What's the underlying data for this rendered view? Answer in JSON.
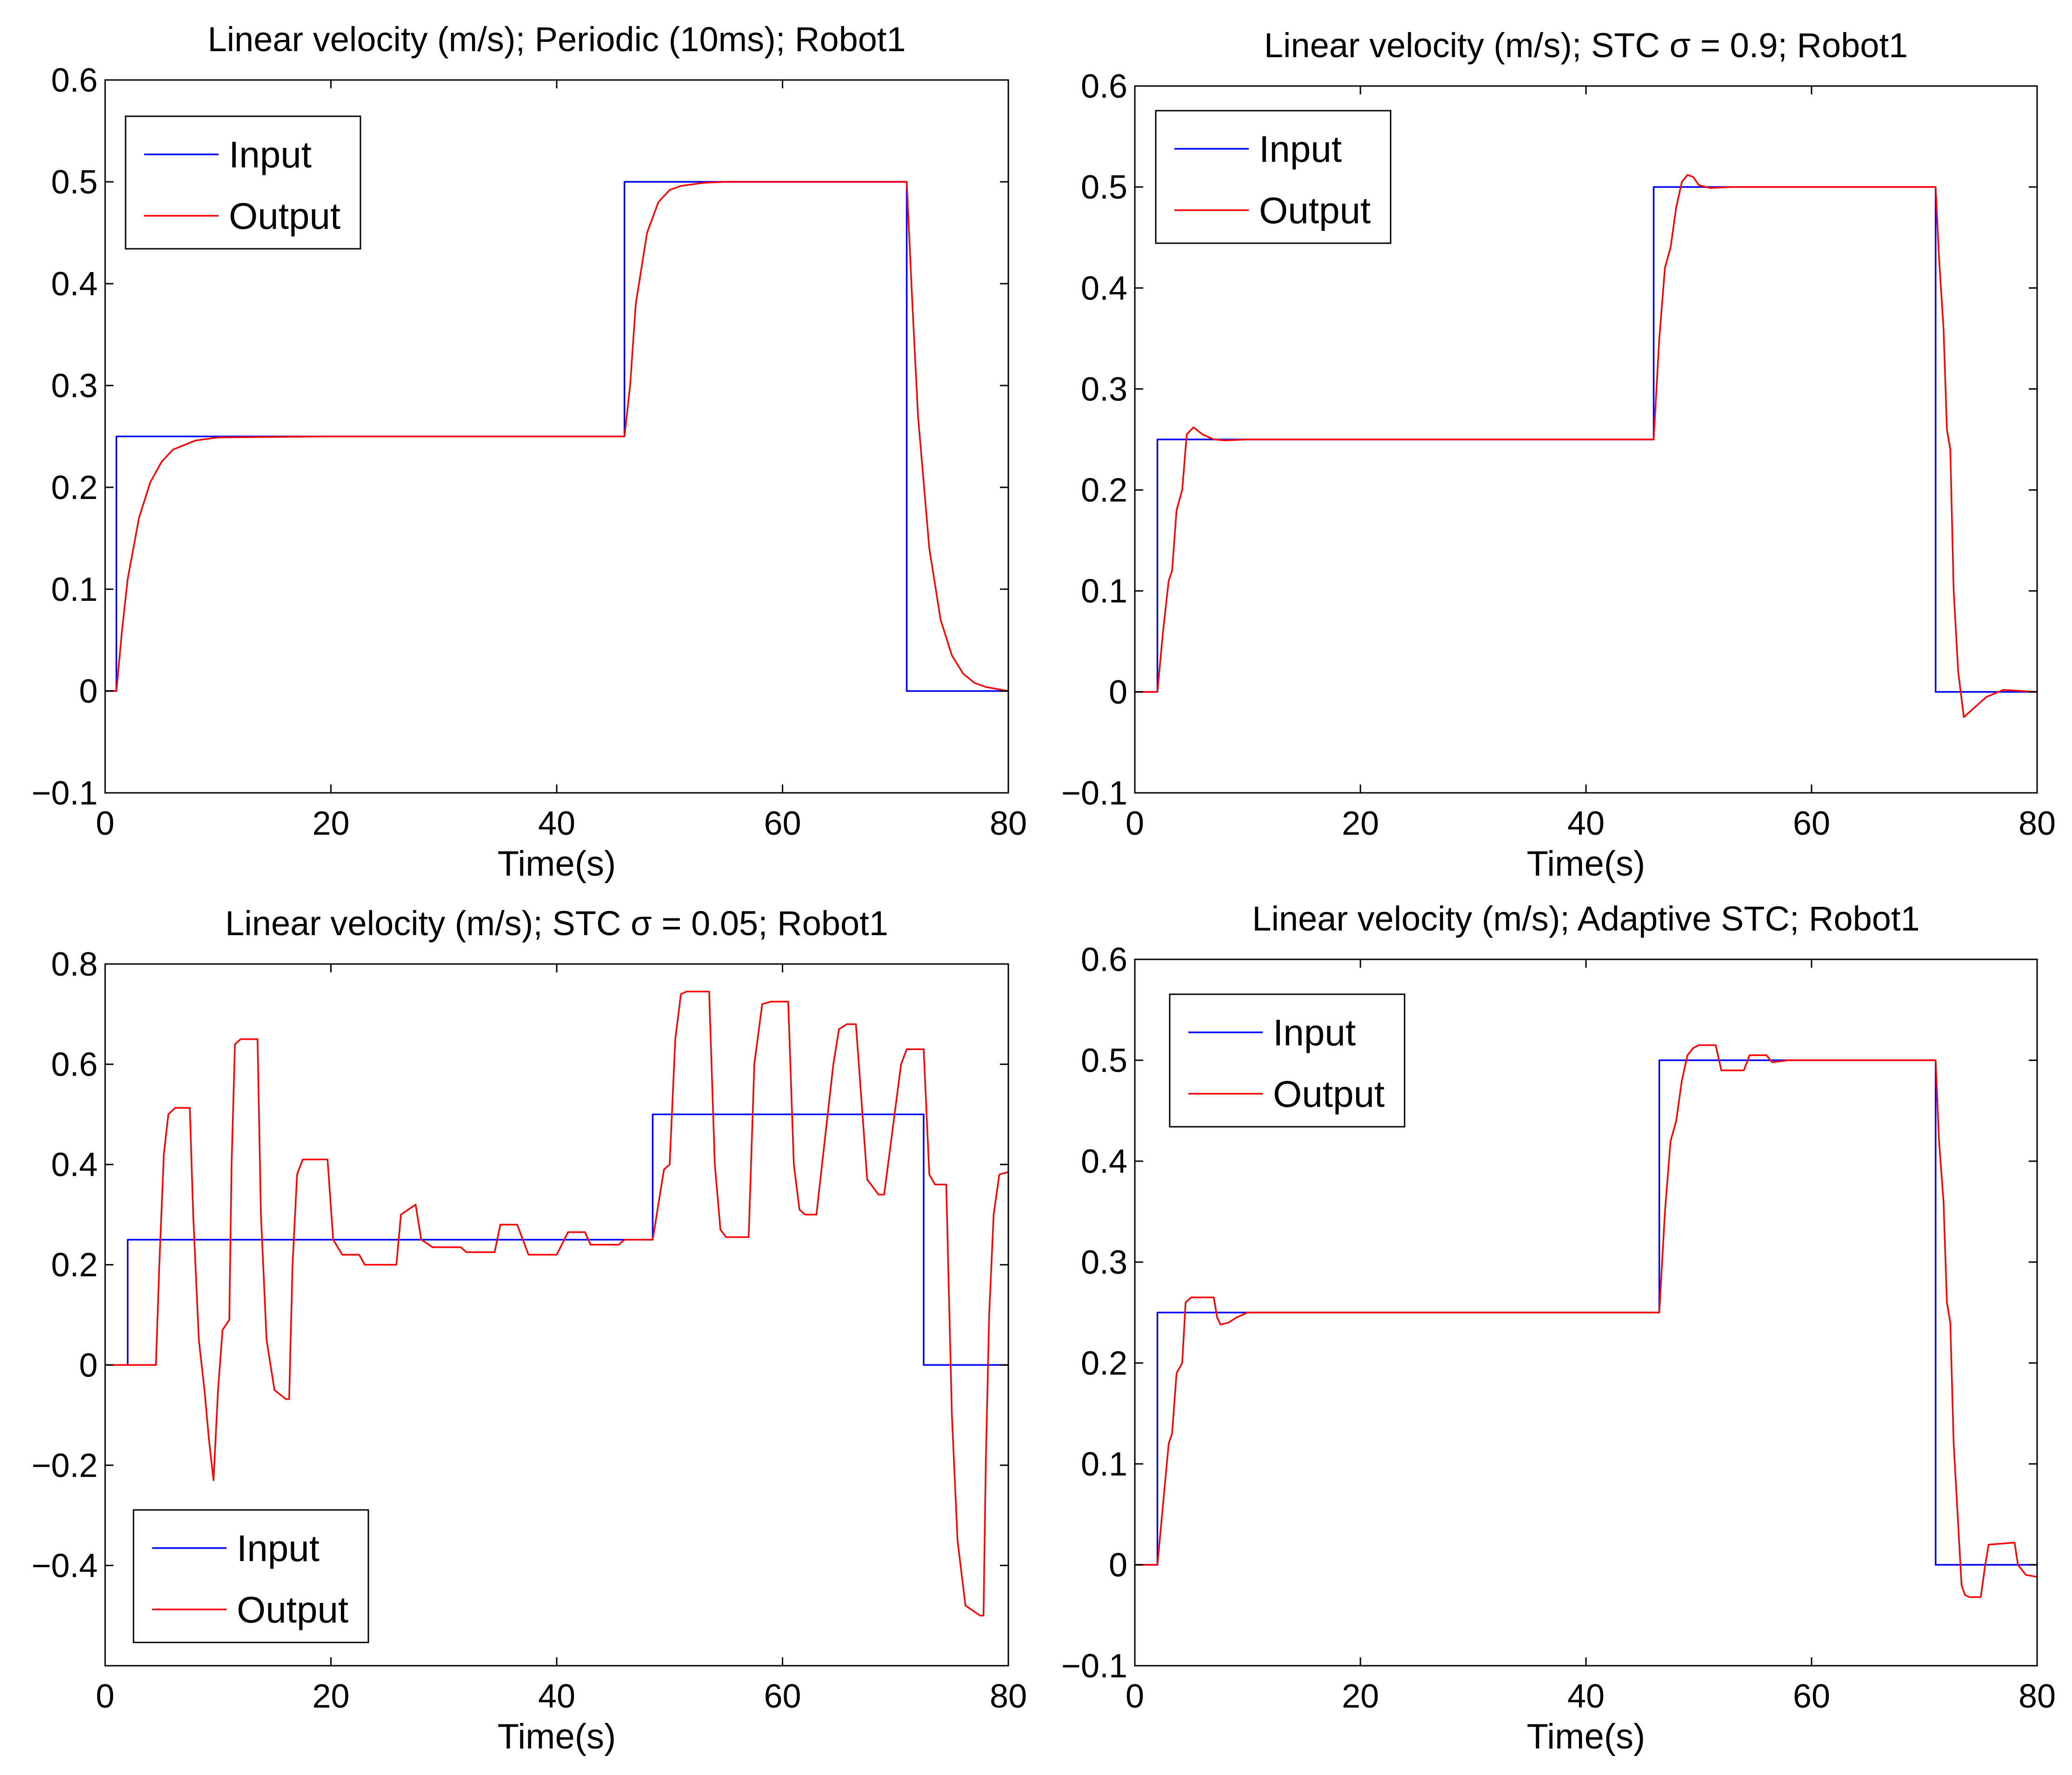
{
  "chart_data": [
    {
      "type": "line",
      "title": "Linear velocity (m/s); Periodic (10ms); Robot1",
      "xlabel": "Time(s)",
      "ylabel": "",
      "xlim": [
        0,
        80
      ],
      "ylim": [
        -0.1,
        0.6
      ],
      "xticks": [
        0,
        20,
        40,
        60,
        80
      ],
      "xtick_labels": [
        "0",
        "20",
        "40",
        "60",
        "80"
      ],
      "yticks": [
        -0.1,
        0,
        0.1,
        0.2,
        0.3,
        0.4,
        0.5,
        0.6
      ],
      "ytick_labels": [
        "−0.1",
        "0",
        "0.1",
        "0.2",
        "0.3",
        "0.4",
        "0.5",
        "0.6"
      ],
      "legend": [
        "Input",
        "Output"
      ],
      "legend_position": "top-left",
      "series": [
        {
          "name": "Input",
          "color": "#0000ff",
          "x": [
            0,
            1,
            1,
            46,
            46,
            71,
            71,
            80
          ],
          "y": [
            0,
            0,
            0.25,
            0.25,
            0.5,
            0.5,
            0,
            0
          ]
        },
        {
          "name": "Output",
          "color": "#ff0000",
          "x": [
            0,
            1,
            1.5,
            2,
            3,
            4,
            5,
            6,
            8,
            10,
            20,
            46,
            46.5,
            47,
            48,
            49,
            50,
            51,
            53,
            55,
            60,
            71,
            71.5,
            72,
            73,
            74,
            75,
            76,
            77,
            78,
            80
          ],
          "y": [
            0,
            0,
            0.06,
            0.11,
            0.17,
            0.205,
            0.225,
            0.237,
            0.246,
            0.249,
            0.25,
            0.25,
            0.3,
            0.38,
            0.45,
            0.48,
            0.492,
            0.496,
            0.499,
            0.5,
            0.5,
            0.5,
            0.38,
            0.27,
            0.14,
            0.07,
            0.035,
            0.017,
            0.008,
            0.004,
            0
          ]
        }
      ]
    },
    {
      "type": "line",
      "title": "Linear velocity (m/s); STC σ = 0.9; Robot1",
      "xlabel": "Time(s)",
      "ylabel": "",
      "xlim": [
        0,
        80
      ],
      "ylim": [
        -0.1,
        0.6
      ],
      "xticks": [
        0,
        20,
        40,
        60,
        80
      ],
      "xtick_labels": [
        "0",
        "20",
        "40",
        "60",
        "80"
      ],
      "yticks": [
        -0.1,
        0,
        0.1,
        0.2,
        0.3,
        0.4,
        0.5,
        0.6
      ],
      "ytick_labels": [
        "−0.1",
        "0",
        "0.1",
        "0.2",
        "0.3",
        "0.4",
        "0.5",
        "0.6"
      ],
      "legend": [
        "Input",
        "Output"
      ],
      "legend_position": "top-left",
      "series": [
        {
          "name": "Input",
          "color": "#0000ff",
          "x": [
            0,
            2,
            2,
            46,
            46,
            71,
            71,
            80
          ],
          "y": [
            0,
            0,
            0.25,
            0.25,
            0.5,
            0.5,
            0,
            0
          ]
        },
        {
          "name": "Output",
          "color": "#ff0000",
          "x": [
            0,
            2,
            2.5,
            3,
            3.3,
            3.7,
            4.2,
            4.6,
            5.2,
            6,
            7,
            8,
            10,
            30,
            46,
            46.5,
            47,
            47.5,
            48,
            48.5,
            49,
            49.5,
            50,
            51,
            53,
            60,
            71,
            71.3,
            71.7,
            72,
            72.3,
            72.6,
            73,
            73.5,
            74.5,
            75.5,
            77,
            80
          ],
          "y": [
            0,
            0,
            0.06,
            0.11,
            0.12,
            0.18,
            0.2,
            0.255,
            0.262,
            0.255,
            0.25,
            0.249,
            0.25,
            0.25,
            0.25,
            0.35,
            0.42,
            0.44,
            0.48,
            0.505,
            0.512,
            0.51,
            0.502,
            0.499,
            0.5,
            0.5,
            0.5,
            0.43,
            0.36,
            0.26,
            0.24,
            0.1,
            0.02,
            -0.025,
            -0.015,
            -0.005,
            0.002,
            0
          ]
        }
      ]
    },
    {
      "type": "line",
      "title": "Linear velocity (m/s); STC σ = 0.05; Robot1",
      "xlabel": "Time(s)",
      "ylabel": "",
      "xlim": [
        0,
        80
      ],
      "ylim": [
        -0.6,
        0.8
      ],
      "xticks": [
        0,
        20,
        40,
        60,
        80
      ],
      "xtick_labels": [
        "0",
        "20",
        "40",
        "60",
        "80"
      ],
      "yticks": [
        -0.4,
        -0.2,
        0,
        0.2,
        0.4,
        0.6,
        0.8
      ],
      "ytick_labels": [
        "−0.4",
        "−0.2",
        "0",
        "0.2",
        "0.4",
        "0.6",
        "0.8"
      ],
      "legend": [
        "Input",
        "Output"
      ],
      "legend_position": "bottom-left",
      "series": [
        {
          "name": "Input",
          "color": "#0000ff",
          "x": [
            0,
            2,
            2,
            48.5,
            48.5,
            72.5,
            72.5,
            80
          ],
          "y": [
            0,
            0,
            0.25,
            0.25,
            0.5,
            0.5,
            0,
            0
          ]
        },
        {
          "name": "Output",
          "color": "#ff0000",
          "x": [
            0,
            4.5,
            4.8,
            5.2,
            5.6,
            6.2,
            7.5,
            7.8,
            8.3,
            8.8,
            9.2,
            9.6,
            10,
            10.4,
            11,
            11.2,
            11.5,
            12,
            13.5,
            13.8,
            14.3,
            15,
            16,
            16.3,
            16.6,
            17,
            17.5,
            19.7,
            20.2,
            21,
            22.5,
            23,
            25.8,
            26.2,
            27.5,
            28,
            29,
            31.5,
            32,
            34.5,
            35,
            36.5,
            37.5,
            40,
            41,
            42.5,
            43,
            45.5,
            46,
            48.5,
            49,
            49.5,
            50,
            50.5,
            51,
            51.5,
            53.5,
            54,
            54.5,
            55,
            57,
            57.5,
            58.2,
            59,
            60.5,
            61,
            61.5,
            62,
            63,
            64.5,
            65,
            65.7,
            66.5,
            67.5,
            68.5,
            69,
            70.5,
            71,
            71.5,
            72.5,
            73,
            73.5,
            74.5,
            75,
            75.5,
            76.2,
            77.5,
            77.8,
            78,
            78.3,
            78.7,
            79.2,
            80
          ],
          "y": [
            0,
            0,
            0.2,
            0.42,
            0.5,
            0.513,
            0.513,
            0.3,
            0.05,
            -0.05,
            -0.15,
            -0.23,
            -0.05,
            0.07,
            0.09,
            0.4,
            0.64,
            0.65,
            0.65,
            0.3,
            0.05,
            -0.05,
            -0.068,
            -0.068,
            0.2,
            0.38,
            0.41,
            0.41,
            0.25,
            0.22,
            0.22,
            0.2,
            0.2,
            0.3,
            0.32,
            0.25,
            0.235,
            0.235,
            0.225,
            0.225,
            0.28,
            0.28,
            0.22,
            0.22,
            0.265,
            0.265,
            0.24,
            0.24,
            0.25,
            0.25,
            0.32,
            0.39,
            0.4,
            0.65,
            0.74,
            0.745,
            0.745,
            0.4,
            0.27,
            0.255,
            0.255,
            0.6,
            0.72,
            0.725,
            0.725,
            0.4,
            0.31,
            0.3,
            0.3,
            0.6,
            0.67,
            0.68,
            0.68,
            0.37,
            0.34,
            0.34,
            0.6,
            0.63,
            0.63,
            0.63,
            0.38,
            0.36,
            0.36,
            -0.1,
            -0.35,
            -0.48,
            -0.5,
            -0.5,
            -0.2,
            0.1,
            0.3,
            0.38,
            0.385
          ]
        }
      ]
    },
    {
      "type": "line",
      "title": "Linear velocity (m/s); Adaptive STC; Robot1",
      "xlabel": "Time(s)",
      "ylabel": "",
      "xlim": [
        0,
        80
      ],
      "ylim": [
        -0.1,
        0.6
      ],
      "xticks": [
        0,
        20,
        40,
        60,
        80
      ],
      "xtick_labels": [
        "0",
        "20",
        "40",
        "60",
        "80"
      ],
      "yticks": [
        -0.1,
        0,
        0.1,
        0.2,
        0.3,
        0.4,
        0.5,
        0.6
      ],
      "ytick_labels": [
        "−0.1",
        "0",
        "0.1",
        "0.2",
        "0.3",
        "0.4",
        "0.5",
        "0.6"
      ],
      "legend": [
        "Input",
        "Output"
      ],
      "legend_position": "top-left",
      "series": [
        {
          "name": "Input",
          "color": "#0000ff",
          "x": [
            0,
            2,
            2,
            46.5,
            46.5,
            71,
            71,
            80
          ],
          "y": [
            0,
            0,
            0.25,
            0.25,
            0.5,
            0.5,
            0,
            0
          ]
        },
        {
          "name": "Output",
          "color": "#ff0000",
          "x": [
            0,
            2,
            2.5,
            3,
            3.3,
            3.7,
            4.2,
            4.5,
            5,
            7,
            7.3,
            7.6,
            8.3,
            9,
            10,
            30,
            46.5,
            47,
            47.5,
            48,
            48.5,
            49,
            49.5,
            50,
            51.5,
            52,
            54,
            54.5,
            56,
            56.5,
            58,
            60,
            71,
            71.3,
            71.7,
            72,
            72.3,
            72.6,
            73,
            73.3,
            73.6,
            74,
            75,
            75.4,
            75.7,
            78,
            78.3,
            79,
            80
          ],
          "y": [
            0,
            0,
            0.06,
            0.12,
            0.13,
            0.19,
            0.2,
            0.26,
            0.265,
            0.265,
            0.245,
            0.238,
            0.24,
            0.245,
            0.25,
            0.25,
            0.25,
            0.35,
            0.42,
            0.44,
            0.48,
            0.505,
            0.512,
            0.515,
            0.515,
            0.49,
            0.49,
            0.505,
            0.505,
            0.498,
            0.5,
            0.5,
            0.5,
            0.42,
            0.36,
            0.26,
            0.24,
            0.12,
            0.04,
            -0.02,
            -0.03,
            -0.032,
            -0.032,
            0.0,
            0.02,
            0.022,
            0.0,
            -0.01,
            -0.012
          ]
        }
      ]
    }
  ]
}
